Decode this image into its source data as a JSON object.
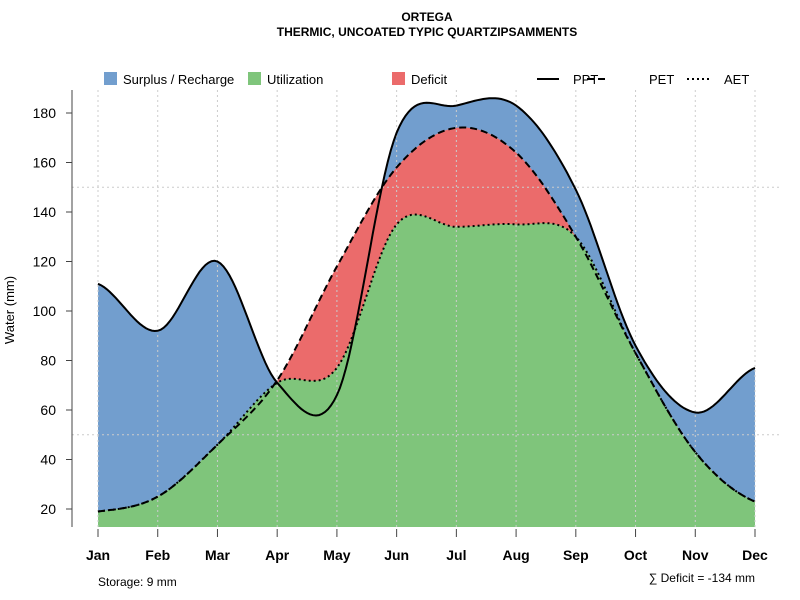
{
  "chart_data": {
    "type": "area",
    "title": "ORTEGA",
    "subtitle": "THERMIC, UNCOATED TYPIC QUARTZIPSAMMENTS",
    "xlabel": "",
    "ylabel": "Water (mm)",
    "ylim": [
      12.7,
      190
    ],
    "yticks": [
      20,
      40,
      60,
      80,
      100,
      120,
      140,
      160,
      180
    ],
    "horizontal_grid": [
      50,
      150
    ],
    "categories": [
      "Jan",
      "Feb",
      "Mar",
      "Apr",
      "May",
      "Jun",
      "Jul",
      "Aug",
      "Sep",
      "Oct",
      "Nov",
      "Dec"
    ],
    "series": [
      {
        "name": "PPT",
        "style": "solid",
        "values": [
          111,
          92,
          120,
          71,
          66,
          172,
          183,
          183,
          149,
          86,
          59,
          77
        ]
      },
      {
        "name": "PET",
        "style": "dashed",
        "values": [
          19,
          25,
          46,
          72,
          118,
          158,
          174,
          164,
          130,
          83,
          43,
          23
        ]
      },
      {
        "name": "AET",
        "style": "dotted",
        "values": [
          19,
          25,
          46,
          71,
          77,
          135,
          134,
          135,
          130,
          83,
          43,
          23
        ]
      }
    ],
    "areas": [
      {
        "name": "Surplus / Recharge",
        "color": "#729ECE"
      },
      {
        "name": "Utilization",
        "color": "#7FC57B"
      },
      {
        "name": "Deficit",
        "color": "#EB6B6B"
      }
    ],
    "legend_placement": "top",
    "annotations": {
      "storage": "Storage: 9 mm",
      "deficit": "∑ Deficit = -134 mm"
    }
  }
}
